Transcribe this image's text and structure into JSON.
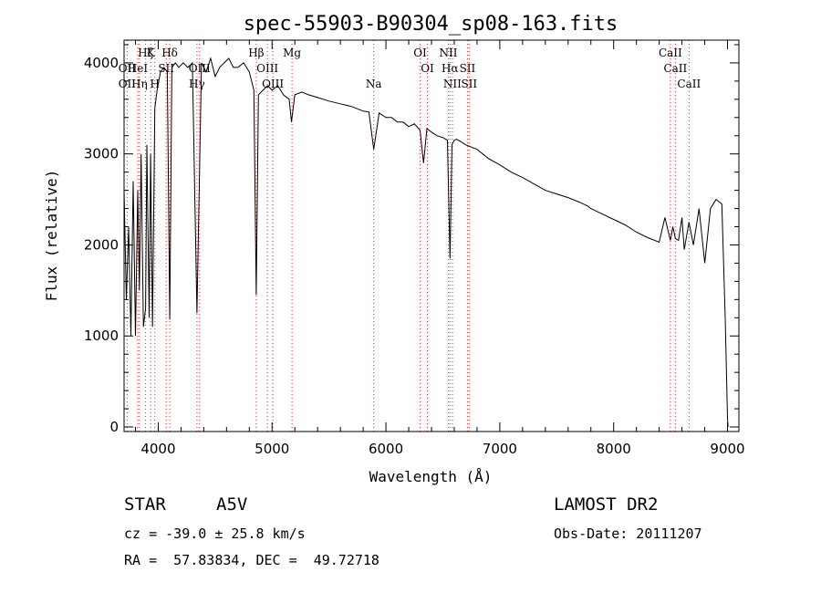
{
  "chart_data": {
    "type": "line",
    "title": "spec-55903-B90304_sp08-163.fits",
    "xlabel": "Wavelength (Å)",
    "ylabel": "Flux (relative)",
    "xlim": [
      3700,
      9100
    ],
    "ylim": [
      -50,
      4250
    ],
    "x_ticks": [
      4000,
      5000,
      6000,
      7000,
      8000,
      9000
    ],
    "y_ticks": [
      0,
      1000,
      2000,
      3000,
      4000
    ],
    "series": [
      {
        "x": [
          3700,
          3720,
          3740,
          3760,
          3780,
          3800,
          3820,
          3835,
          3850,
          3870,
          3889,
          3900,
          3920,
          3933,
          3950,
          3970,
          3990,
          4020,
          4050,
          4080,
          4101,
          4120,
          4150,
          4180,
          4220,
          4260,
          4300,
          4340,
          4380,
          4420,
          4460,
          4500,
          4540,
          4580,
          4620,
          4660,
          4700,
          4750,
          4800,
          4840,
          4861,
          4880,
          4920,
          4960,
          5000,
          5050,
          5100,
          5150,
          5170,
          5200,
          5260,
          5320,
          5400,
          5500,
          5600,
          5700,
          5800,
          5850,
          5893,
          5940,
          6000,
          6050,
          6100,
          6150,
          6200,
          6250,
          6300,
          6330,
          6360,
          6400,
          6450,
          6500,
          6540,
          6563,
          6580,
          6600,
          6620,
          6650,
          6700,
          6800,
          6900,
          7000,
          7100,
          7200,
          7300,
          7400,
          7500,
          7600,
          7700,
          7750,
          7770,
          7800,
          7900,
          8000,
          8100,
          8200,
          8300,
          8400,
          8450,
          8498,
          8520,
          8542,
          8570,
          8600,
          8620,
          8662,
          8700,
          8750,
          8800,
          8850,
          8900,
          8950,
          8980,
          9000,
          9005
        ],
        "y": [
          2600,
          1400,
          2200,
          1000,
          2700,
          1000,
          2600,
          1500,
          3000,
          1100,
          1300,
          3100,
          1200,
          3000,
          1100,
          3500,
          3700,
          3900,
          3950,
          3900,
          1180,
          3950,
          4000,
          3950,
          4000,
          3950,
          4000,
          1250,
          4000,
          3900,
          4050,
          3850,
          3950,
          4000,
          4050,
          3950,
          3950,
          4000,
          3900,
          3700,
          1450,
          3650,
          3700,
          3750,
          3700,
          3750,
          3650,
          3600,
          3350,
          3650,
          3680,
          3650,
          3620,
          3580,
          3550,
          3520,
          3470,
          3460,
          3050,
          3450,
          3400,
          3400,
          3350,
          3350,
          3300,
          3330,
          3260,
          2900,
          3280,
          3240,
          3200,
          3180,
          3150,
          1850,
          3100,
          3150,
          3160,
          3140,
          3100,
          3050,
          2950,
          2880,
          2800,
          2740,
          2670,
          2600,
          2560,
          2520,
          2470,
          2440,
          2430,
          2400,
          2340,
          2280,
          2220,
          2140,
          2080,
          2030,
          2300,
          2050,
          2200,
          2070,
          2050,
          2300,
          1950,
          2250,
          2000,
          2400,
          1800,
          2400,
          2500,
          2450,
          1200,
          100,
          0
        ]
      }
    ],
    "spectral_lines": [
      {
        "name": "Hζ",
        "wavelength": 3889,
        "row": 1
      },
      {
        "name": "K",
        "wavelength": 3934,
        "row": 1
      },
      {
        "name": "Hδ",
        "wavelength": 4101,
        "row": 1
      },
      {
        "name": "Hβ",
        "wavelength": 4861,
        "row": 1
      },
      {
        "name": "Mg",
        "wavelength": 5175,
        "row": 1
      },
      {
        "name": "OI",
        "wavelength": 6300,
        "row": 1
      },
      {
        "name": "NII",
        "wavelength": 6548,
        "row": 1
      },
      {
        "name": "CaII",
        "wavelength": 8498,
        "row": 1
      },
      {
        "name": "OII",
        "wavelength": 3727,
        "row": 2
      },
      {
        "name": "HeI",
        "wavelength": 3820,
        "row": 2
      },
      {
        "name": "SII",
        "wavelength": 4070,
        "row": 2
      },
      {
        "name": "OIII",
        "wavelength": 4363,
        "row": 2
      },
      {
        "name": "OIII",
        "wavelength": 4959,
        "row": 2
      },
      {
        "name": "OI",
        "wavelength": 6364,
        "row": 2
      },
      {
        "name": "Hα",
        "wavelength": 6563,
        "row": 2
      },
      {
        "name": "SII",
        "wavelength": 6716,
        "row": 2
      },
      {
        "name": "CaII",
        "wavelength": 8542,
        "row": 2
      },
      {
        "name": "OII",
        "wavelength": 3727,
        "row": 3
      },
      {
        "name": "Hη",
        "wavelength": 3835,
        "row": 3
      },
      {
        "name": "H",
        "wavelength": 3970,
        "row": 3
      },
      {
        "name": "Hγ",
        "wavelength": 4340,
        "row": 3
      },
      {
        "name": "OIII",
        "wavelength": 5007,
        "row": 3
      },
      {
        "name": "Na",
        "wavelength": 5893,
        "row": 3
      },
      {
        "name": "NII",
        "wavelength": 6583,
        "row": 3
      },
      {
        "name": "SII",
        "wavelength": 6731,
        "row": 3
      },
      {
        "name": "CaII",
        "wavelength": 8662,
        "row": 3
      }
    ]
  },
  "info": {
    "object_class": "STAR",
    "subclass": "A5V",
    "survey": "LAMOST DR2",
    "redshift_line": "cz = -39.0 ± 25.8 km/s",
    "obs_date_line": "Obs-Date: 20111207",
    "coords_line": "RA =  57.83834, DEC =  49.72718"
  },
  "colors": {
    "foreground": "#000000",
    "line_marker": "#e03030",
    "background": "#ffffff"
  }
}
